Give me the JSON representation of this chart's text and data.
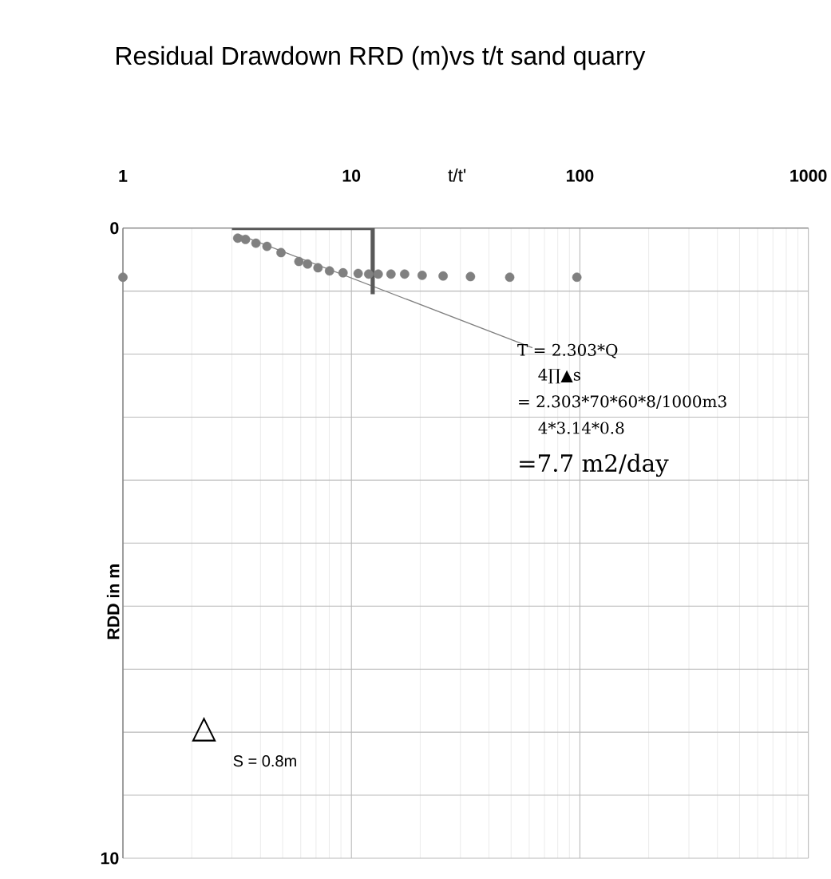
{
  "chart_data": {
    "type": "scatter",
    "title": "Residual Drawdown RRD (m)vs t/t sand quarry",
    "xlabel": "t/t'",
    "ylabel": "RDD in m",
    "log": "x",
    "xlim": [
      1,
      1000
    ],
    "xticks": [
      1,
      10,
      100,
      1000
    ],
    "ylim": [
      10,
      0
    ],
    "yticks": [
      0,
      {
        "value": 1,
        "label": null
      },
      {
        "value": 2,
        "label": null
      },
      {
        "value": 3,
        "label": null
      },
      {
        "value": 4,
        "label": null
      },
      {
        "value": 5,
        "label": null
      },
      {
        "value": 6,
        "label": null
      },
      {
        "value": 7,
        "label": null
      },
      {
        "value": 8,
        "label": null
      },
      {
        "value": 9,
        "label": null
      },
      10
    ],
    "grid": true,
    "series": [
      {
        "marker": "circle",
        "color": "#808080",
        "x": [
          1.0,
          3.18,
          3.44,
          3.82,
          4.27,
          4.92,
          5.89,
          6.43,
          7.14,
          8.02,
          9.19,
          10.7,
          11.9,
          13.1,
          14.9,
          17.1,
          20.4,
          25.2,
          33.2,
          49.3,
          97
        ],
        "values": [
          0.78,
          0.16,
          0.18,
          0.24,
          0.29,
          0.39,
          0.53,
          0.57,
          0.63,
          0.68,
          0.71,
          0.72,
          0.73,
          0.73,
          0.73,
          0.73,
          0.75,
          0.76,
          0.77,
          0.78,
          0.78
        ]
      },
      {
        "type": "line",
        "marker": "none",
        "color": "#808080",
        "x": [
          3.2,
          62
        ],
        "values": [
          0.1,
          1.9
        ]
      },
      {
        "type": "line",
        "marker": "none",
        "color": "#595959",
        "x": [
          3.0,
          12.4,
          12.4
        ],
        "values": [
          0,
          0,
          1.05
        ]
      }
    ],
    "annotations": [
      "T = 2.303*Q",
      "4∏▲s",
      "=    2.303*70*60*8/1000m3",
      "4*3.14*0.8",
      "=7.7 m2/day",
      "△",
      "S = 0.8m"
    ]
  }
}
